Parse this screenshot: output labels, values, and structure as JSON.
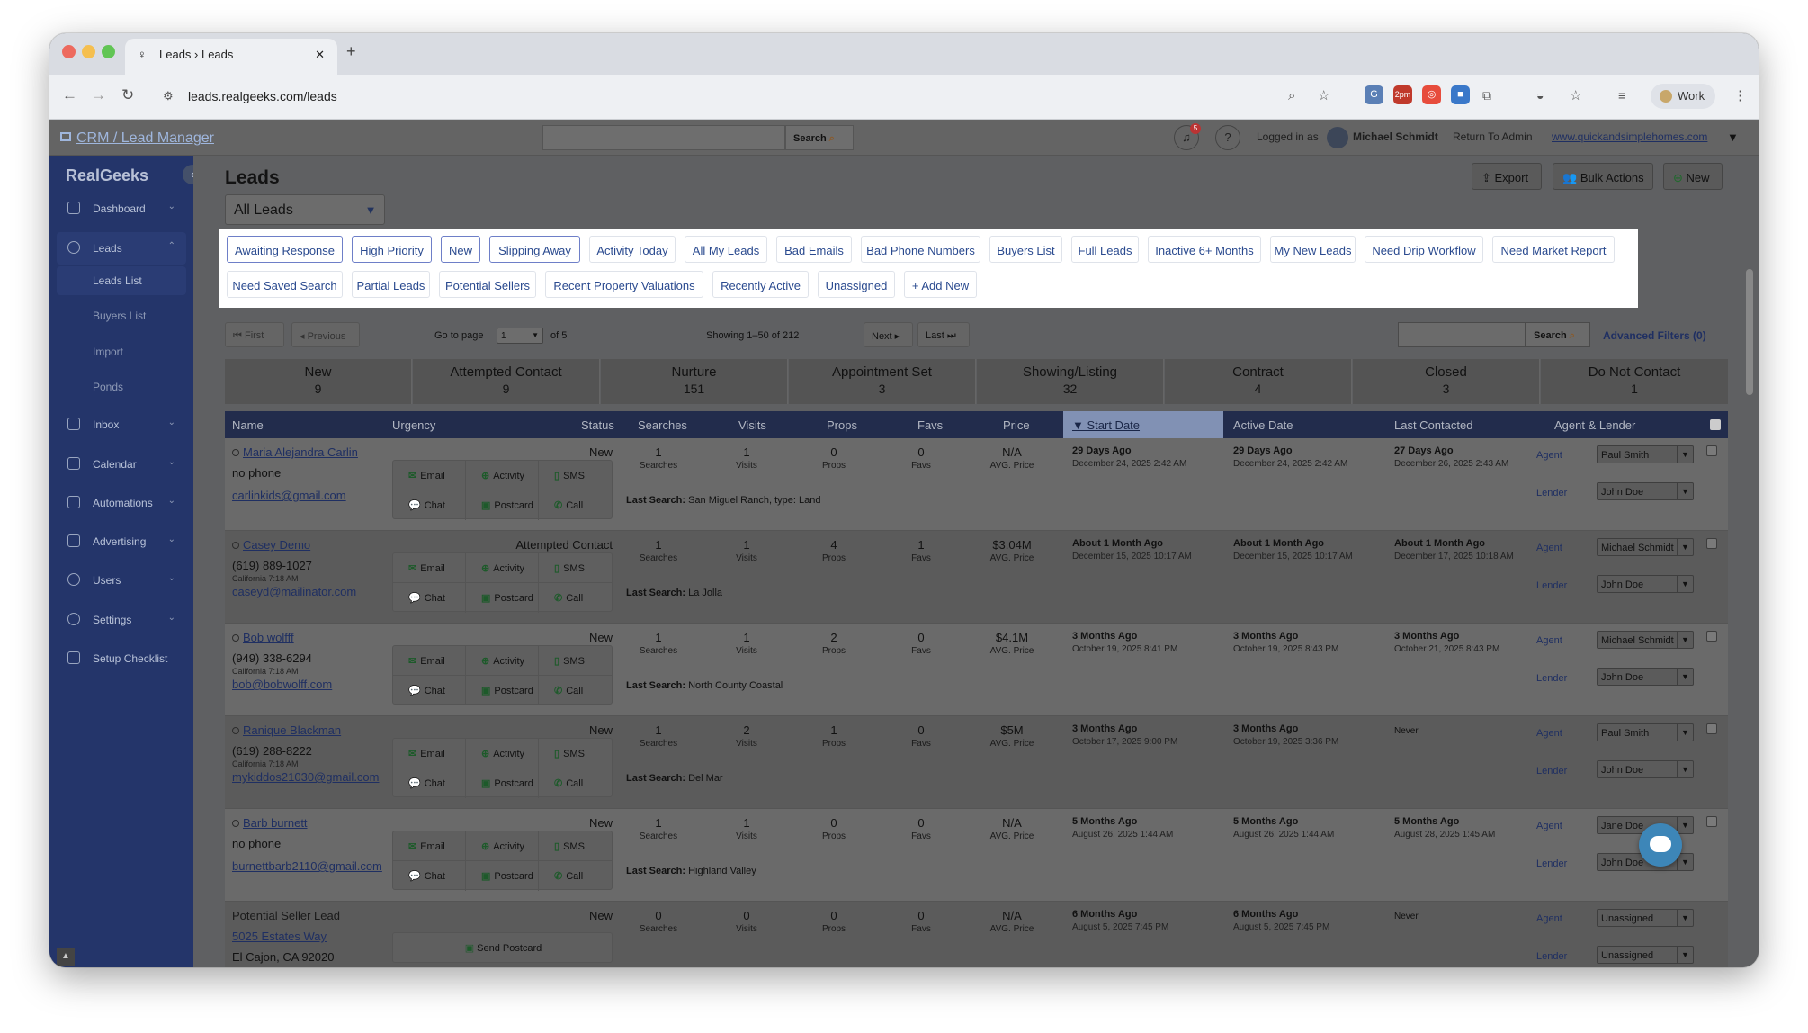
{
  "browser": {
    "tab_title": "Leads › Leads",
    "url": "leads.realgeeks.com/leads",
    "profile": "Work",
    "ext_badge": "2pm"
  },
  "header": {
    "crm_link": "CRM / Lead Manager",
    "search_btn": "Search",
    "notif_count": "5",
    "logged_in_label": "Logged in as",
    "user": "Michael Schmidt",
    "return": "Return To Admin",
    "site": "www.quickandsimplehomes.com"
  },
  "sidebar": {
    "logo": "RealGeeks",
    "items": [
      {
        "label": "Dashboard"
      },
      {
        "label": "Leads"
      },
      {
        "label": "Inbox"
      },
      {
        "label": "Calendar"
      },
      {
        "label": "Automations"
      },
      {
        "label": "Advertising"
      },
      {
        "label": "Users"
      },
      {
        "label": "Settings"
      },
      {
        "label": "Setup Checklist"
      }
    ],
    "sub": [
      "Leads List",
      "Buyers List",
      "Import",
      "Ponds"
    ]
  },
  "main": {
    "title": "Leads",
    "view": "All Leads",
    "buttons": {
      "export": "Export",
      "bulk": "Bulk Actions",
      "new": "New"
    }
  },
  "filters": [
    "Awaiting Response",
    "High Priority",
    "New",
    "Slipping Away",
    "Activity Today",
    "All My Leads",
    "Bad Emails",
    "Bad Phone Numbers",
    "Buyers List",
    "Full Leads",
    "Inactive 6+ Months",
    "My New Leads",
    "Need Drip Workflow",
    "Need Market Report",
    "Need Saved Search",
    "Partial Leads",
    "Potential Sellers",
    "Recent Property Valuations",
    "Recently Active",
    "Unassigned",
    "+ Add New"
  ],
  "pager": {
    "first": "First",
    "previous": "Previous",
    "goto": "Go to page",
    "page": "1",
    "of": "of 5",
    "showing": "Showing 1–50 of 212",
    "next": "Next",
    "last": "Last",
    "search": "Search",
    "advanced": "Advanced Filters (0)"
  },
  "stages": [
    {
      "name": "New",
      "count": "9"
    },
    {
      "name": "Attempted Contact",
      "count": "9"
    },
    {
      "name": "Nurture",
      "count": "151"
    },
    {
      "name": "Appointment Set",
      "count": "3"
    },
    {
      "name": "Showing/Listing",
      "count": "32"
    },
    {
      "name": "Contract",
      "count": "4"
    },
    {
      "name": "Closed",
      "count": "3"
    },
    {
      "name": "Do Not Contact",
      "count": "1"
    }
  ],
  "columns": {
    "name": "Name",
    "urgency": "Urgency",
    "status": "Status",
    "searches": "Searches",
    "visits": "Visits",
    "props": "Props",
    "favs": "Favs",
    "price": "Price",
    "start": "Start Date",
    "active": "Active Date",
    "last": "Last Contacted",
    "agent": "Agent & Lender"
  },
  "actions": {
    "email": "Email",
    "activity": "Activity",
    "sms": "SMS",
    "chat": "Chat",
    "postcard": "Postcard",
    "call": "Call",
    "send_postcard": "Send Postcard"
  },
  "labels": {
    "searches": "Searches",
    "visits": "Visits",
    "props": "Props",
    "favs": "Favs",
    "avg": "AVG. Price",
    "last_search": "Last Search:",
    "agent": "Agent",
    "lender": "Lender"
  },
  "rows": [
    {
      "name": "Maria Alejandra Carlin",
      "phone": "no phone",
      "loc": "",
      "email": "carlinkids@gmail.com",
      "status": "New",
      "searches": "1",
      "visits": "1",
      "props": "0",
      "favs": "0",
      "price": "N/A",
      "last_search": "San Miguel Ranch, type: Land",
      "start_rel": "29 Days Ago",
      "start_abs": "December 24, 2025 2:42 AM",
      "active_rel": "29 Days Ago",
      "active_abs": "December 24, 2025 2:42 AM",
      "contact_rel": "27 Days Ago",
      "contact_abs": "December 26, 2025 2:43 AM",
      "agent": "Paul Smith",
      "lender": "John Doe"
    },
    {
      "name": "Casey Demo",
      "phone": "(619) 889-1027",
      "loc": "California 7:18 AM",
      "email": "caseyd@mailinator.com",
      "status": "Attempted Contact",
      "searches": "1",
      "visits": "1",
      "props": "4",
      "favs": "1",
      "price": "$3.04M",
      "last_search": "La Jolla",
      "start_rel": "About 1 Month Ago",
      "start_abs": "December 15, 2025 10:17 AM",
      "active_rel": "About 1 Month Ago",
      "active_abs": "December 15, 2025 10:17 AM",
      "contact_rel": "About 1 Month Ago",
      "contact_abs": "December 17, 2025 10:18 AM",
      "agent": "Michael Schmidt",
      "lender": "John Doe"
    },
    {
      "name": "Bob wolfff",
      "phone": "(949) 338-6294",
      "loc": "California 7:18 AM",
      "email": "bob@bobwolff.com",
      "status": "New",
      "searches": "1",
      "visits": "1",
      "props": "2",
      "favs": "0",
      "price": "$4.1M",
      "last_search": "North County Coastal",
      "start_rel": "3 Months Ago",
      "start_abs": "October 19, 2025 8:41 PM",
      "active_rel": "3 Months Ago",
      "active_abs": "October 19, 2025 8:43 PM",
      "contact_rel": "3 Months Ago",
      "contact_abs": "October 21, 2025 8:43 PM",
      "agent": "Michael Schmidt",
      "lender": "John Doe"
    },
    {
      "name": "Ranique Blackman",
      "phone": "(619) 288-8222",
      "loc": "California 7:18 AM",
      "email": "mykiddos21030@gmail.com",
      "status": "New",
      "searches": "1",
      "visits": "2",
      "props": "1",
      "favs": "0",
      "price": "$5M",
      "last_search": "Del Mar",
      "start_rel": "3 Months Ago",
      "start_abs": "October 17, 2025 9:00 PM",
      "active_rel": "3 Months Ago",
      "active_abs": "October 19, 2025 3:36 PM",
      "contact_rel": "Never",
      "contact_abs": "",
      "agent": "Paul Smith",
      "lender": "John Doe"
    },
    {
      "name": "Barb burnett",
      "phone": "no phone",
      "loc": "",
      "email": "burnettbarb2110@gmail.com",
      "status": "New",
      "searches": "1",
      "visits": "1",
      "props": "0",
      "favs": "0",
      "price": "N/A",
      "last_search": "Highland Valley",
      "start_rel": "5 Months Ago",
      "start_abs": "August 26, 2025 1:44 AM",
      "active_rel": "5 Months Ago",
      "active_abs": "August 26, 2025 1:44 AM",
      "contact_rel": "5 Months Ago",
      "contact_abs": "August 28, 2025 1:45 AM",
      "agent": "Jane Doe",
      "lender": "John Doe"
    },
    {
      "name": "Potential Seller Lead",
      "phone": "5025 Estates Way",
      "loc": "",
      "email": "El Cajon, CA 92020",
      "status": "New",
      "searches": "0",
      "visits": "0",
      "props": "0",
      "favs": "0",
      "price": "N/A",
      "last_search": "",
      "start_rel": "6 Months Ago",
      "start_abs": "August 5, 2025 7:45 PM",
      "active_rel": "6 Months Ago",
      "active_abs": "August 5, 2025 7:45 PM",
      "contact_rel": "Never",
      "contact_abs": "",
      "agent": "Unassigned",
      "lender": "Unassigned"
    }
  ]
}
